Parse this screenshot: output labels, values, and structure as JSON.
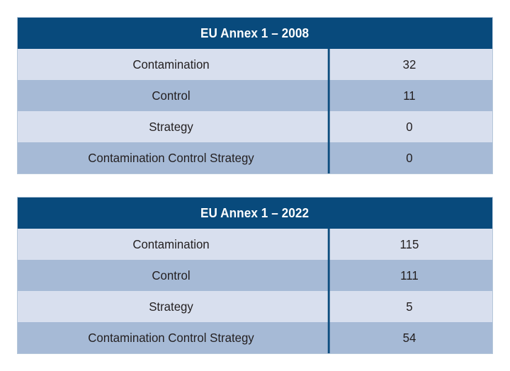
{
  "colors": {
    "header_bg": "#084a7c",
    "row_light": "#d8dfee",
    "row_medium": "#a6bad6",
    "divider": "#0d4d7e",
    "text": "#231f20",
    "table_border": "#b5c7da",
    "page_bg": "#ffffff"
  },
  "tables": [
    {
      "title": "EU Annex 1 – 2008",
      "rows": [
        {
          "label": "Contamination",
          "value": 32
        },
        {
          "label": "Control",
          "value": 11
        },
        {
          "label": "Strategy",
          "value": 0
        },
        {
          "label": "Contamination Control Strategy",
          "value": 0
        }
      ]
    },
    {
      "title": "EU Annex 1 – 2022",
      "rows": [
        {
          "label": "Contamination",
          "value": 115
        },
        {
          "label": "Control",
          "value": 111
        },
        {
          "label": "Strategy",
          "value": 5
        },
        {
          "label": "Contamination Control Strategy",
          "value": 54
        }
      ]
    }
  ],
  "chart_data": [
    {
      "type": "table",
      "title": "EU Annex 1 – 2008",
      "rows": [
        [
          "Contamination",
          32
        ],
        [
          "Control",
          11
        ],
        [
          "Strategy",
          0
        ],
        [
          "Contamination Control Strategy",
          0
        ]
      ]
    },
    {
      "type": "table",
      "title": "EU Annex 1 – 2022",
      "rows": [
        [
          "Contamination",
          115
        ],
        [
          "Control",
          111
        ],
        [
          "Strategy",
          5
        ],
        [
          "Contamination Control Strategy",
          54
        ]
      ]
    }
  ]
}
